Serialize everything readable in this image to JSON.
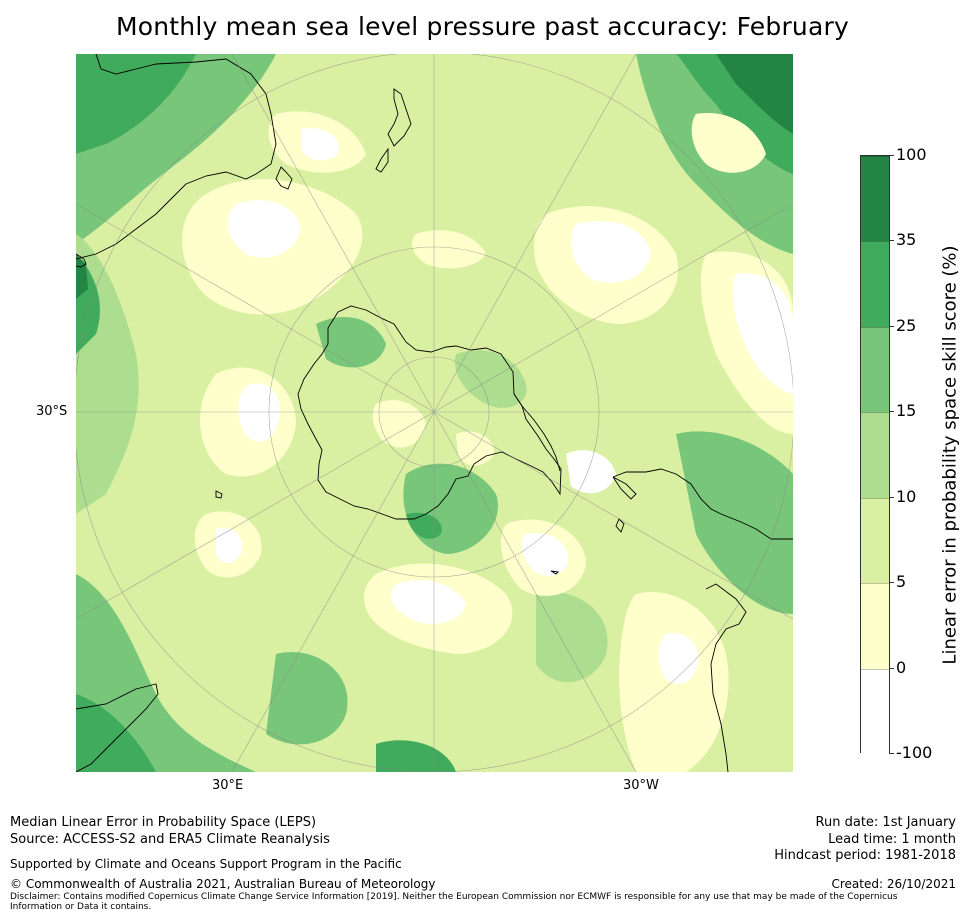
{
  "title": "Monthly mean sea level pressure past accuracy: February",
  "map": {
    "projection": "south polar stereographic",
    "axis_labels": {
      "left_lat": "30°S",
      "bottom_left_lon": "30°E",
      "bottom_right_lon": "30°W"
    },
    "colors": {
      "c_neg": "#ffffff",
      "c_0_5": "#ffffcc",
      "c_5_10": "#d9f0a3",
      "c_10_15": "#addd8e",
      "c_15_25": "#78c679",
      "c_25_35": "#41ab5d",
      "c_35_100": "#238443",
      "coast": "#000000",
      "grid": "#888888"
    }
  },
  "colorbar": {
    "label": "Linear error in probability space skill score (%)",
    "ticks": [
      "100",
      "35",
      "25",
      "15",
      "10",
      "5",
      "0",
      "-100"
    ],
    "bins": [
      {
        "from": "-100",
        "to": "0",
        "color": "#ffffff"
      },
      {
        "from": "0",
        "to": "5",
        "color": "#ffffcc"
      },
      {
        "from": "5",
        "to": "10",
        "color": "#d9f0a3"
      },
      {
        "from": "10",
        "to": "15",
        "color": "#addd8e"
      },
      {
        "from": "15",
        "to": "25",
        "color": "#78c679"
      },
      {
        "from": "25",
        "to": "35",
        "color": "#41ab5d"
      },
      {
        "from": "35",
        "to": "100",
        "color": "#238443"
      }
    ]
  },
  "footer": {
    "method": "Median Linear Error in Probability Space (LEPS)",
    "source": "Source: ACCESS-S2 and ERA5 Climate Reanalysis",
    "support": "Supported by Climate and Oceans Support Program in the Pacific",
    "copyright": "© Commonwealth of Australia 2021, Australian Bureau of Meteorology",
    "disclaimer": "Disclaimer: Contains modified Copernicus Climate Change Service Information [2019]. Neither the European Commission nor ECMWF is responsible for any use that may be made of the Copernicus Information or Data it contains.",
    "run_date": "Run date: 1st January",
    "lead_time": "Lead time: 1 month",
    "hindcast": "Hindcast period: 1981-2018",
    "created": "Created: 26/10/2021"
  }
}
